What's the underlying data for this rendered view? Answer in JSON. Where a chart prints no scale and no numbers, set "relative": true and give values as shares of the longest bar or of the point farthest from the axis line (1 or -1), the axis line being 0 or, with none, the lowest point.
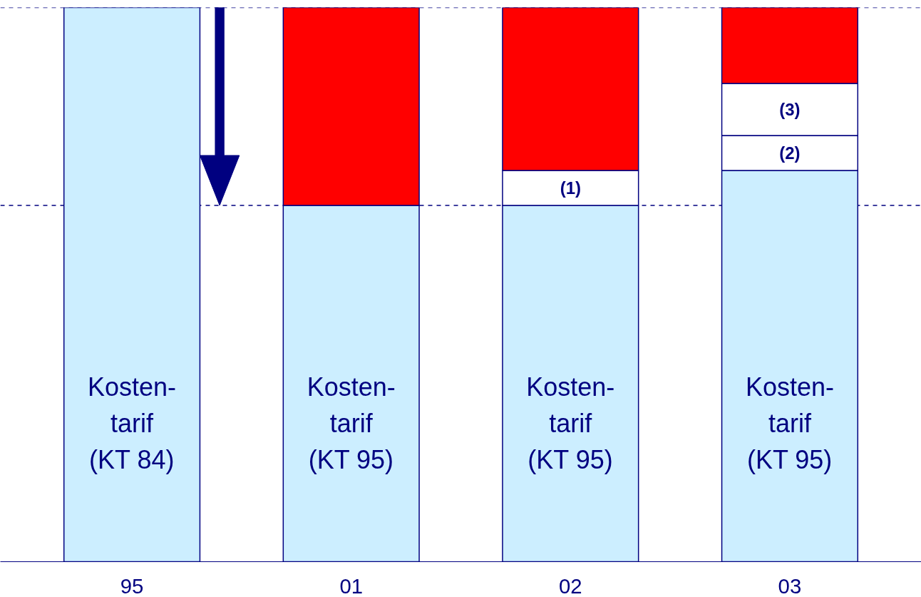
{
  "chart_data": {
    "type": "bar",
    "stacked": true,
    "relative": true,
    "grid": false,
    "legend": false,
    "categories": [
      "95",
      "01",
      "02",
      "03"
    ],
    "series": [
      {
        "name": "Kosten-\ntarif\n(KT 84)",
        "color": "#cceeff",
        "values": [
          1.0,
          null,
          null,
          null
        ]
      },
      {
        "name": "Kosten-\ntarif\n(KT 95)",
        "color": "#cceeff",
        "values": [
          null,
          0.643,
          0.643,
          0.706
        ]
      },
      {
        "name": "(1)",
        "color": "#ffffff",
        "values": [
          null,
          null,
          0.063,
          null
        ]
      },
      {
        "name": "(2)",
        "color": "#ffffff",
        "values": [
          null,
          null,
          null,
          0.063
        ]
      },
      {
        "name": "(3)",
        "color": "#ffffff",
        "values": [
          null,
          null,
          null,
          0.094
        ]
      },
      {
        "color": "#ff0000",
        "values": [
          null,
          0.357,
          0.294,
          0.137
        ]
      }
    ],
    "ref_lines": [
      {
        "axis": "y",
        "value": 1.0,
        "line_style": "dashed",
        "color": "#000080"
      },
      {
        "axis": "y",
        "value": 0.643,
        "line_style": "dashed",
        "color": "#000080"
      }
    ]
  }
}
